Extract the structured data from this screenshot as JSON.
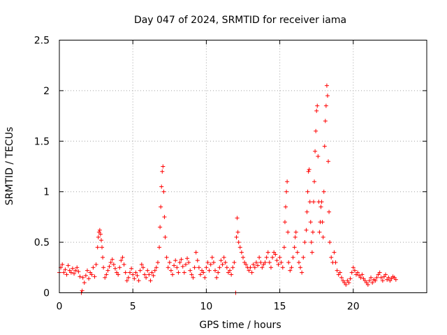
{
  "chart_data": {
    "type": "scatter",
    "title": "Day 047 of 2024, SRMTID for receiver iama",
    "xlabel": "GPS time / hours",
    "ylabel": "SRMTID / TECUs",
    "xlim": [
      0,
      25
    ],
    "ylim": [
      0,
      2.5
    ],
    "x_ticks": [
      "0",
      "5",
      "10",
      "15",
      "20"
    ],
    "y_ticks": [
      "0",
      "0.5",
      "1",
      "1.5",
      "2",
      "2.5"
    ],
    "grid": true,
    "marker": "+",
    "series_color": "#ff0000",
    "series": [
      {
        "name": "SRMTID",
        "points": [
          [
            0.0,
            0.2
          ],
          [
            0.1,
            0.25
          ],
          [
            0.2,
            0.28
          ],
          [
            0.3,
            0.2
          ],
          [
            0.4,
            0.23
          ],
          [
            0.5,
            0.18
          ],
          [
            0.6,
            0.27
          ],
          [
            0.7,
            0.22
          ],
          [
            0.8,
            0.2
          ],
          [
            0.9,
            0.24
          ],
          [
            1.0,
            0.19
          ],
          [
            1.1,
            0.22
          ],
          [
            1.2,
            0.25
          ],
          [
            1.3,
            0.21
          ],
          [
            1.4,
            0.16
          ],
          [
            1.5,
            0.0
          ],
          [
            1.55,
            0.02
          ],
          [
            1.6,
            0.15
          ],
          [
            1.7,
            0.1
          ],
          [
            1.8,
            0.17
          ],
          [
            1.9,
            0.22
          ],
          [
            2.0,
            0.14
          ],
          [
            2.1,
            0.2
          ],
          [
            2.2,
            0.18
          ],
          [
            2.3,
            0.25
          ],
          [
            2.4,
            0.16
          ],
          [
            2.5,
            0.28
          ],
          [
            2.6,
            0.45
          ],
          [
            2.65,
            0.55
          ],
          [
            2.7,
            0.6
          ],
          [
            2.75,
            0.62
          ],
          [
            2.8,
            0.58
          ],
          [
            2.85,
            0.52
          ],
          [
            2.9,
            0.45
          ],
          [
            2.95,
            0.35
          ],
          [
            3.0,
            0.25
          ],
          [
            3.1,
            0.15
          ],
          [
            3.2,
            0.18
          ],
          [
            3.3,
            0.22
          ],
          [
            3.4,
            0.26
          ],
          [
            3.5,
            0.3
          ],
          [
            3.6,
            0.33
          ],
          [
            3.7,
            0.28
          ],
          [
            3.8,
            0.24
          ],
          [
            3.9,
            0.2
          ],
          [
            4.0,
            0.18
          ],
          [
            4.1,
            0.25
          ],
          [
            4.2,
            0.32
          ],
          [
            4.3,
            0.35
          ],
          [
            4.4,
            0.28
          ],
          [
            4.5,
            0.2
          ],
          [
            4.6,
            0.12
          ],
          [
            4.7,
            0.15
          ],
          [
            4.8,
            0.2
          ],
          [
            4.9,
            0.24
          ],
          [
            5.0,
            0.18
          ],
          [
            5.1,
            0.14
          ],
          [
            5.2,
            0.2
          ],
          [
            5.3,
            0.17
          ],
          [
            5.4,
            0.12
          ],
          [
            5.5,
            0.22
          ],
          [
            5.6,
            0.28
          ],
          [
            5.7,
            0.25
          ],
          [
            5.8,
            0.18
          ],
          [
            5.9,
            0.15
          ],
          [
            6.0,
            0.22
          ],
          [
            6.1,
            0.18
          ],
          [
            6.2,
            0.12
          ],
          [
            6.3,
            0.2
          ],
          [
            6.4,
            0.17
          ],
          [
            6.5,
            0.22
          ],
          [
            6.6,
            0.25
          ],
          [
            6.7,
            0.3
          ],
          [
            6.8,
            0.45
          ],
          [
            6.85,
            0.65
          ],
          [
            6.9,
            0.85
          ],
          [
            6.95,
            1.05
          ],
          [
            7.0,
            1.2
          ],
          [
            7.05,
            1.25
          ],
          [
            7.1,
            1.0
          ],
          [
            7.15,
            0.75
          ],
          [
            7.2,
            0.55
          ],
          [
            7.3,
            0.35
          ],
          [
            7.4,
            0.25
          ],
          [
            7.5,
            0.3
          ],
          [
            7.6,
            0.22
          ],
          [
            7.7,
            0.18
          ],
          [
            7.8,
            0.27
          ],
          [
            7.9,
            0.32
          ],
          [
            8.0,
            0.25
          ],
          [
            8.1,
            0.2
          ],
          [
            8.2,
            0.3
          ],
          [
            8.3,
            0.33
          ],
          [
            8.4,
            0.26
          ],
          [
            8.5,
            0.2
          ],
          [
            8.6,
            0.28
          ],
          [
            8.7,
            0.34
          ],
          [
            8.8,
            0.3
          ],
          [
            8.9,
            0.22
          ],
          [
            9.0,
            0.18
          ],
          [
            9.1,
            0.15
          ],
          [
            9.2,
            0.25
          ],
          [
            9.3,
            0.4
          ],
          [
            9.4,
            0.32
          ],
          [
            9.5,
            0.25
          ],
          [
            9.6,
            0.18
          ],
          [
            9.7,
            0.22
          ],
          [
            9.8,
            0.2
          ],
          [
            9.9,
            0.15
          ],
          [
            10.0,
            0.25
          ],
          [
            10.1,
            0.3
          ],
          [
            10.2,
            0.22
          ],
          [
            10.3,
            0.28
          ],
          [
            10.4,
            0.35
          ],
          [
            10.5,
            0.3
          ],
          [
            10.6,
            0.22
          ],
          [
            10.7,
            0.15
          ],
          [
            10.8,
            0.2
          ],
          [
            10.9,
            0.25
          ],
          [
            11.0,
            0.32
          ],
          [
            11.1,
            0.28
          ],
          [
            11.2,
            0.35
          ],
          [
            11.3,
            0.3
          ],
          [
            11.4,
            0.25
          ],
          [
            11.5,
            0.2
          ],
          [
            11.6,
            0.22
          ],
          [
            11.7,
            0.18
          ],
          [
            11.8,
            0.25
          ],
          [
            11.9,
            0.3
          ],
          [
            12.0,
            0.0
          ],
          [
            12.05,
            0.55
          ],
          [
            12.1,
            0.74
          ],
          [
            12.15,
            0.6
          ],
          [
            12.2,
            0.5
          ],
          [
            12.3,
            0.45
          ],
          [
            12.4,
            0.4
          ],
          [
            12.5,
            0.35
          ],
          [
            12.6,
            0.3
          ],
          [
            12.7,
            0.28
          ],
          [
            12.8,
            0.25
          ],
          [
            12.9,
            0.22
          ],
          [
            13.0,
            0.25
          ],
          [
            13.1,
            0.2
          ],
          [
            13.2,
            0.28
          ],
          [
            13.3,
            0.25
          ],
          [
            13.4,
            0.3
          ],
          [
            13.5,
            0.27
          ],
          [
            13.6,
            0.35
          ],
          [
            13.7,
            0.3
          ],
          [
            13.8,
            0.25
          ],
          [
            13.9,
            0.28
          ],
          [
            14.0,
            0.3
          ],
          [
            14.1,
            0.35
          ],
          [
            14.2,
            0.4
          ],
          [
            14.3,
            0.3
          ],
          [
            14.4,
            0.25
          ],
          [
            14.5,
            0.35
          ],
          [
            14.6,
            0.4
          ],
          [
            14.7,
            0.38
          ],
          [
            14.8,
            0.32
          ],
          [
            14.9,
            0.28
          ],
          [
            15.0,
            0.35
          ],
          [
            15.1,
            0.3
          ],
          [
            15.2,
            0.25
          ],
          [
            15.3,
            0.45
          ],
          [
            15.35,
            0.7
          ],
          [
            15.4,
            0.85
          ],
          [
            15.45,
            1.0
          ],
          [
            15.5,
            1.1
          ],
          [
            15.55,
            0.6
          ],
          [
            15.6,
            0.3
          ],
          [
            15.7,
            0.22
          ],
          [
            15.8,
            0.25
          ],
          [
            15.9,
            0.35
          ],
          [
            16.0,
            0.45
          ],
          [
            16.05,
            0.55
          ],
          [
            16.1,
            0.6
          ],
          [
            16.2,
            0.4
          ],
          [
            16.3,
            0.3
          ],
          [
            16.4,
            0.25
          ],
          [
            16.5,
            0.2
          ],
          [
            16.6,
            0.35
          ],
          [
            16.7,
            0.5
          ],
          [
            16.8,
            0.62
          ],
          [
            16.85,
            0.8
          ],
          [
            16.9,
            1.0
          ],
          [
            16.95,
            1.2
          ],
          [
            17.0,
            1.22
          ],
          [
            17.05,
            0.9
          ],
          [
            17.1,
            0.7
          ],
          [
            17.15,
            0.5
          ],
          [
            17.2,
            0.4
          ],
          [
            17.25,
            0.6
          ],
          [
            17.3,
            0.9
          ],
          [
            17.35,
            1.1
          ],
          [
            17.4,
            1.4
          ],
          [
            17.45,
            1.6
          ],
          [
            17.5,
            1.8
          ],
          [
            17.55,
            1.85
          ],
          [
            17.6,
            1.35
          ],
          [
            17.65,
            0.9
          ],
          [
            17.7,
            0.6
          ],
          [
            17.75,
            0.7
          ],
          [
            17.8,
            0.85
          ],
          [
            17.85,
            0.9
          ],
          [
            17.9,
            0.7
          ],
          [
            17.95,
            0.55
          ],
          [
            18.0,
            1.0
          ],
          [
            18.05,
            1.45
          ],
          [
            18.1,
            1.7
          ],
          [
            18.15,
            1.85
          ],
          [
            18.2,
            2.05
          ],
          [
            18.25,
            1.95
          ],
          [
            18.3,
            1.3
          ],
          [
            18.35,
            0.8
          ],
          [
            18.4,
            0.5
          ],
          [
            18.5,
            0.35
          ],
          [
            18.6,
            0.3
          ],
          [
            18.7,
            0.4
          ],
          [
            18.8,
            0.3
          ],
          [
            18.9,
            0.22
          ],
          [
            19.0,
            0.18
          ],
          [
            19.1,
            0.2
          ],
          [
            19.2,
            0.15
          ],
          [
            19.3,
            0.12
          ],
          [
            19.4,
            0.1
          ],
          [
            19.5,
            0.08
          ],
          [
            19.6,
            0.12
          ],
          [
            19.7,
            0.1
          ],
          [
            19.8,
            0.14
          ],
          [
            19.9,
            0.2
          ],
          [
            20.0,
            0.25
          ],
          [
            20.1,
            0.22
          ],
          [
            20.2,
            0.18
          ],
          [
            20.3,
            0.2
          ],
          [
            20.4,
            0.17
          ],
          [
            20.5,
            0.15
          ],
          [
            20.6,
            0.18
          ],
          [
            20.7,
            0.14
          ],
          [
            20.8,
            0.12
          ],
          [
            20.9,
            0.1
          ],
          [
            21.0,
            0.08
          ],
          [
            21.1,
            0.12
          ],
          [
            21.2,
            0.15
          ],
          [
            21.3,
            0.1
          ],
          [
            21.4,
            0.13
          ],
          [
            21.5,
            0.12
          ],
          [
            21.6,
            0.15
          ],
          [
            21.7,
            0.18
          ],
          [
            21.8,
            0.2
          ],
          [
            21.9,
            0.15
          ],
          [
            22.0,
            0.12
          ],
          [
            22.1,
            0.16
          ],
          [
            22.2,
            0.18
          ],
          [
            22.3,
            0.13
          ],
          [
            22.4,
            0.15
          ],
          [
            22.5,
            0.12
          ],
          [
            22.6,
            0.14
          ],
          [
            22.7,
            0.16
          ],
          [
            22.8,
            0.15
          ],
          [
            22.9,
            0.13
          ]
        ]
      }
    ]
  }
}
